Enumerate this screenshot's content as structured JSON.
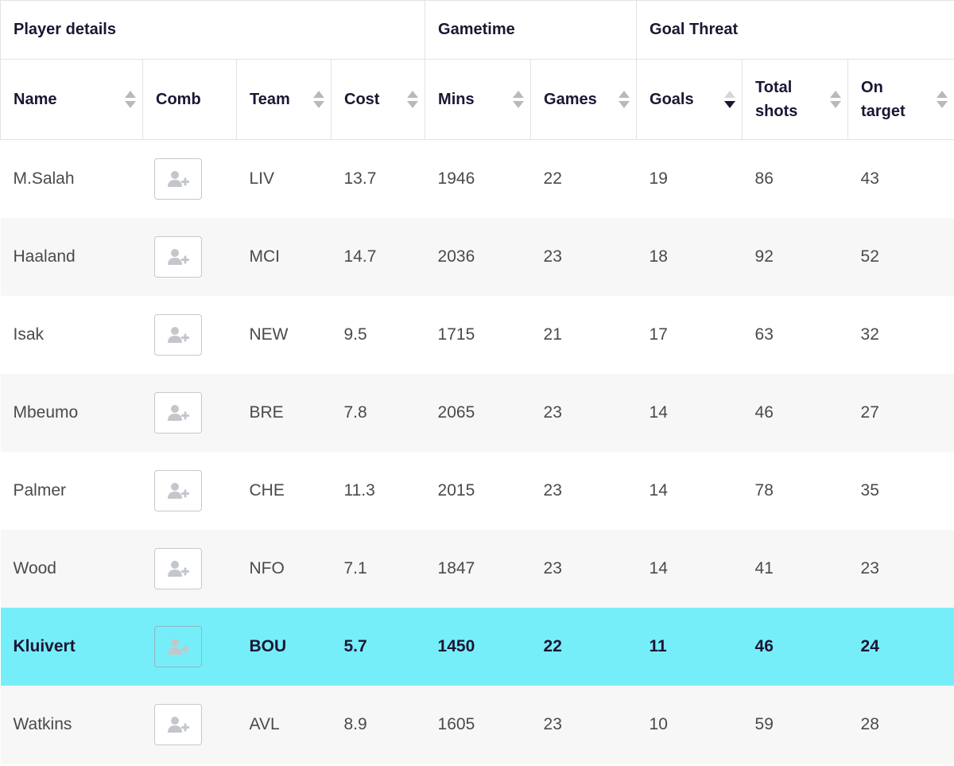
{
  "groups": {
    "player_details": "Player details",
    "gametime": "Gametime",
    "goal_threat": "Goal Threat"
  },
  "columns": {
    "name": "Name",
    "comb": "Comb",
    "team": "Team",
    "cost": "Cost",
    "mins": "Mins",
    "games": "Games",
    "goals": "Goals",
    "total_shots": "Total shots",
    "on_target": "On target"
  },
  "sorted_column": "goals",
  "sort_direction": "descending",
  "comb_icon": "add-user-icon",
  "highlight_color": "#76eefa",
  "rows": [
    {
      "name": "M.Salah",
      "team": "LIV",
      "cost": "13.7",
      "mins": "1946",
      "games": "22",
      "goals": "19",
      "total_shots": "86",
      "on_target": "43"
    },
    {
      "name": "Haaland",
      "team": "MCI",
      "cost": "14.7",
      "mins": "2036",
      "games": "23",
      "goals": "18",
      "total_shots": "92",
      "on_target": "52"
    },
    {
      "name": "Isak",
      "team": "NEW",
      "cost": "9.5",
      "mins": "1715",
      "games": "21",
      "goals": "17",
      "total_shots": "63",
      "on_target": "32"
    },
    {
      "name": "Mbeumo",
      "team": "BRE",
      "cost": "7.8",
      "mins": "2065",
      "games": "23",
      "goals": "14",
      "total_shots": "46",
      "on_target": "27"
    },
    {
      "name": "Palmer",
      "team": "CHE",
      "cost": "11.3",
      "mins": "2015",
      "games": "23",
      "goals": "14",
      "total_shots": "78",
      "on_target": "35"
    },
    {
      "name": "Wood",
      "team": "NFO",
      "cost": "7.1",
      "mins": "1847",
      "games": "23",
      "goals": "14",
      "total_shots": "41",
      "on_target": "23"
    },
    {
      "name": "Kluivert",
      "team": "BOU",
      "cost": "5.7",
      "mins": "1450",
      "games": "22",
      "goals": "11",
      "total_shots": "46",
      "on_target": "24",
      "highlighted": true
    },
    {
      "name": "Watkins",
      "team": "AVL",
      "cost": "8.9",
      "mins": "1605",
      "games": "23",
      "goals": "10",
      "total_shots": "59",
      "on_target": "28"
    }
  ]
}
